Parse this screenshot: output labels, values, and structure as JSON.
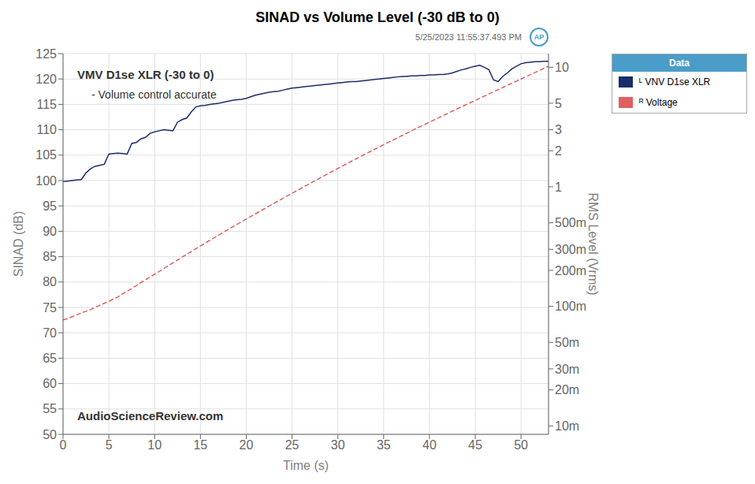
{
  "chart_data": {
    "type": "line",
    "title": "SINAD vs Volume Level (-30 dB to 0)",
    "x_label": "Time (s)",
    "y_label": "SINAD (dB)",
    "y2_label": "RMS Level (Vrms)",
    "annotations": [
      "5/25/2023  11:55:37.493 PM",
      "VMV D1se XLR (-30 to 0)",
      "- Volume control accurate",
      "AudioScienceReview.com",
      "AP"
    ],
    "legend_title": "Data",
    "legend": "right",
    "grid": true,
    "log": "y2",
    "xlim": [
      0,
      53
    ],
    "xticks": [
      0,
      5,
      10,
      15,
      20,
      25,
      30,
      35,
      40,
      45,
      50
    ],
    "ylim": [
      50,
      125
    ],
    "yticks": [
      50,
      55,
      60,
      65,
      70,
      75,
      80,
      85,
      90,
      95,
      100,
      105,
      110,
      115,
      120,
      125
    ],
    "y2lim": [
      0.0085,
      13.0
    ],
    "y2ticks": [
      {
        "value": 0.01,
        "label": "10m"
      },
      {
        "value": 0.02,
        "label": "20m"
      },
      {
        "value": 0.03,
        "label": "30m"
      },
      {
        "value": 0.05,
        "label": "50m"
      },
      {
        "value": 0.1,
        "label": "100m"
      },
      {
        "value": 0.2,
        "label": "200m"
      },
      {
        "value": 0.3,
        "label": "300m"
      },
      {
        "value": 0.5,
        "label": "500m"
      },
      1,
      2,
      3,
      5,
      10
    ],
    "x": [
      0.0,
      0.5,
      1.0,
      1.5,
      2.0,
      2.5,
      3.0,
      3.5,
      4.0,
      4.5,
      5.0,
      5.5,
      6.0,
      6.5,
      7.0,
      7.5,
      8.0,
      8.5,
      9.0,
      9.5,
      10.0,
      10.5,
      11.0,
      11.5,
      12.0,
      12.5,
      13.0,
      13.5,
      14.0,
      14.5,
      15.0,
      15.5,
      16.0,
      16.5,
      17.0,
      17.5,
      18.0,
      18.5,
      19.0,
      19.5,
      20.0,
      20.5,
      21.0,
      21.5,
      22.0,
      22.5,
      23.0,
      23.5,
      24.0,
      24.5,
      25.0,
      25.5,
      26.0,
      26.5,
      27.0,
      27.5,
      28.0,
      28.5,
      29.0,
      29.5,
      30.0,
      30.5,
      31.0,
      31.5,
      32.0,
      32.5,
      33.0,
      33.5,
      34.0,
      34.5,
      35.0,
      35.5,
      36.0,
      36.5,
      37.0,
      37.5,
      38.0,
      38.5,
      39.0,
      39.5,
      40.0,
      40.5,
      41.0,
      41.5,
      42.0,
      42.5,
      43.0,
      43.5,
      44.0,
      44.5,
      45.0,
      45.5,
      46.0,
      46.5,
      47.0,
      47.5,
      48.0,
      48.5,
      49.0,
      49.5,
      50.0,
      50.5,
      51.0,
      51.5,
      52.0,
      52.5,
      53.0
    ],
    "series": [
      {
        "name": "ᴸ VNV D1se XLR",
        "color": "#1a2d6b",
        "axis": "y",
        "line_style": "solid",
        "values": [
          99.8,
          99.9,
          100.0,
          100.1,
          100.2,
          101.5,
          102.3,
          102.8,
          103.0,
          103.2,
          105.2,
          105.3,
          105.4,
          105.3,
          105.2,
          107.3,
          107.5,
          108.2,
          108.5,
          109.3,
          109.6,
          109.8,
          110.0,
          109.9,
          109.8,
          111.5,
          112.0,
          112.3,
          113.5,
          114.5,
          114.7,
          114.8,
          115.0,
          115.1,
          115.2,
          115.4,
          115.6,
          115.8,
          115.9,
          116.0,
          116.2,
          116.5,
          116.8,
          117.0,
          117.2,
          117.4,
          117.5,
          117.6,
          117.8,
          118.0,
          118.2,
          118.3,
          118.4,
          118.5,
          118.6,
          118.7,
          118.8,
          118.9,
          119.0,
          119.1,
          119.2,
          119.3,
          119.4,
          119.5,
          119.5,
          119.6,
          119.7,
          119.8,
          119.9,
          120.0,
          120.1,
          120.2,
          120.3,
          120.4,
          120.5,
          120.5,
          120.6,
          120.6,
          120.7,
          120.7,
          120.8,
          120.8,
          120.9,
          120.9,
          121.0,
          121.2,
          121.5,
          121.8,
          122.0,
          122.3,
          122.5,
          122.7,
          122.3,
          121.8,
          119.8,
          119.5,
          120.5,
          121.2,
          122.0,
          122.5,
          123.0,
          123.2,
          123.3,
          123.4,
          123.4,
          123.5,
          123.5
        ]
      },
      {
        "name": "ᴿ Voltage",
        "color": "#e06060",
        "axis": "y2",
        "line_style": "dashed",
        "values": [
          0.077,
          0.079,
          0.082,
          0.085,
          0.088,
          0.091,
          0.094,
          0.098,
          0.102,
          0.106,
          0.11,
          0.115,
          0.12,
          0.127,
          0.134,
          0.141,
          0.149,
          0.158,
          0.167,
          0.176,
          0.186,
          0.196,
          0.207,
          0.219,
          0.231,
          0.244,
          0.258,
          0.272,
          0.287,
          0.303,
          0.32,
          0.337,
          0.356,
          0.375,
          0.395,
          0.416,
          0.438,
          0.461,
          0.485,
          0.511,
          0.537,
          0.565,
          0.594,
          0.625,
          0.657,
          0.69,
          0.725,
          0.762,
          0.8,
          0.84,
          0.882,
          0.926,
          0.972,
          1.02,
          1.07,
          1.123,
          1.178,
          1.235,
          1.296,
          1.358,
          1.424,
          1.492,
          1.563,
          1.637,
          1.714,
          1.794,
          1.878,
          1.965,
          2.056,
          2.15,
          2.248,
          2.35,
          2.456,
          2.566,
          2.681,
          2.8,
          2.924,
          3.053,
          3.187,
          3.326,
          3.471,
          3.622,
          3.779,
          3.943,
          4.113,
          4.29,
          4.474,
          4.665,
          4.864,
          5.07,
          5.284,
          5.507,
          5.739,
          5.98,
          6.231,
          6.492,
          6.763,
          7.046,
          7.341,
          7.648,
          7.969,
          8.303,
          8.651,
          9.014,
          9.392,
          9.787,
          10.198
        ]
      }
    ]
  }
}
